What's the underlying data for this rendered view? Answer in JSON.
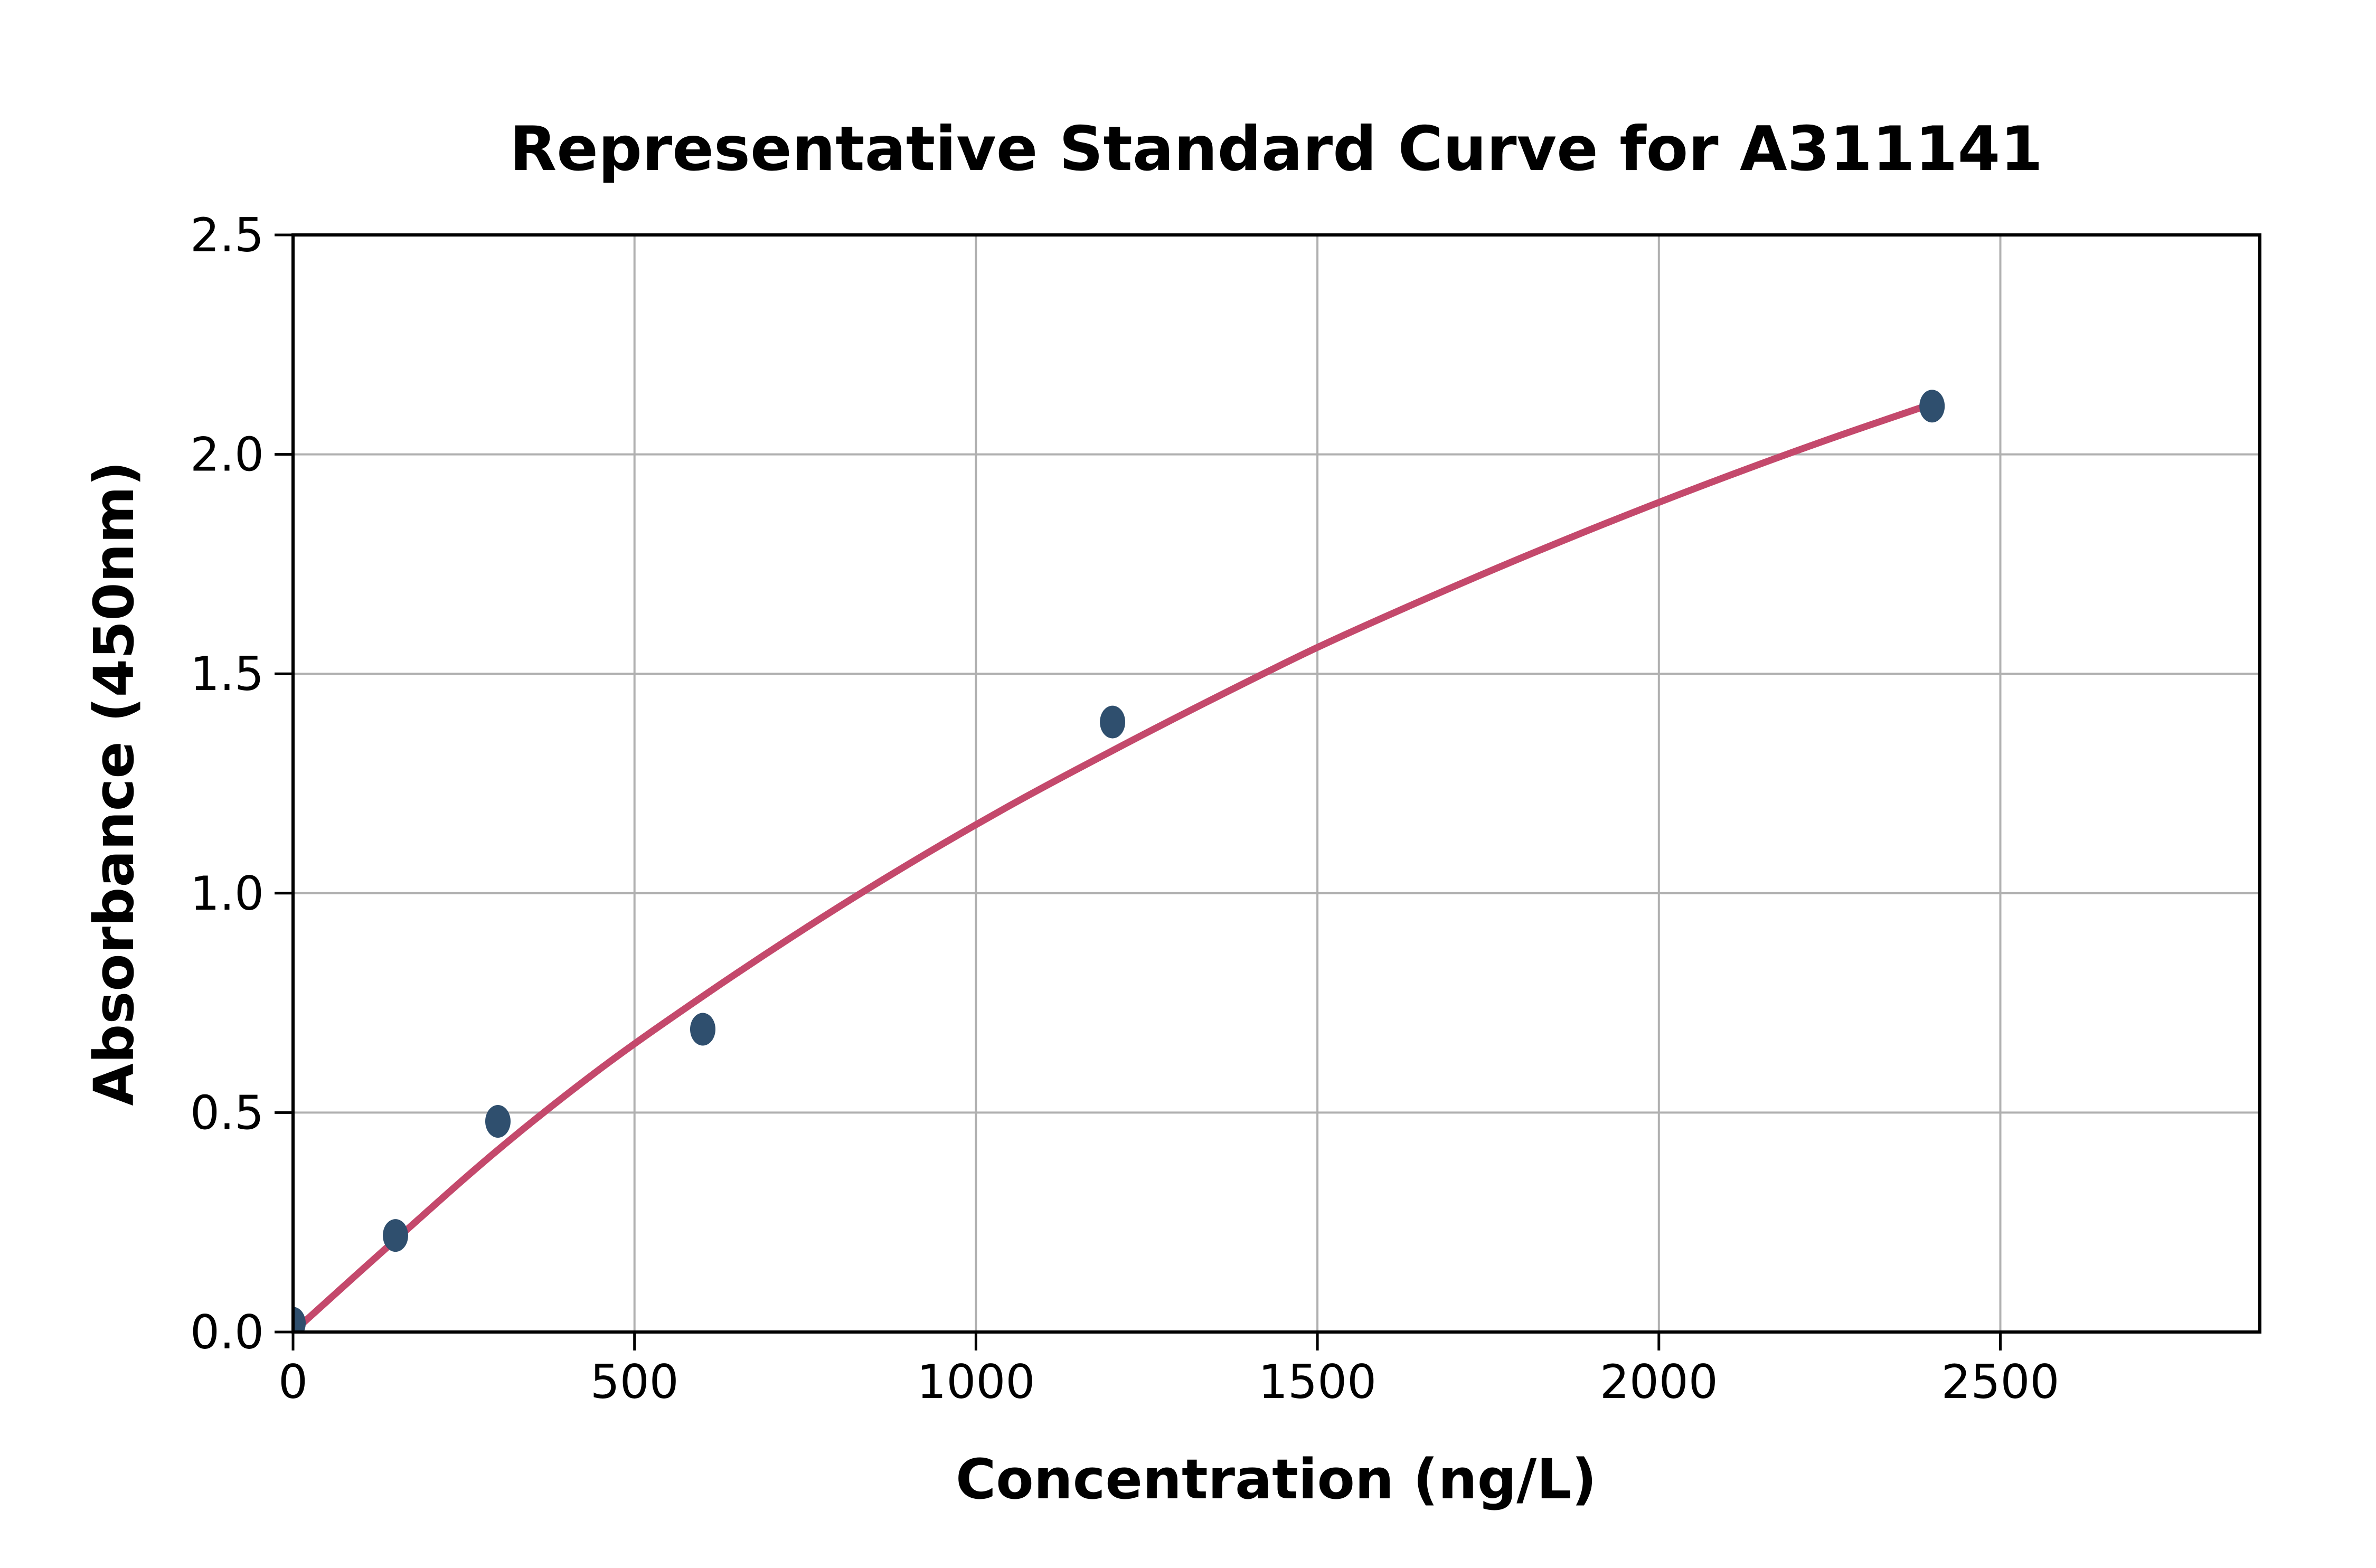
{
  "chart_data": {
    "type": "scatter",
    "title": "Representative Standard Curve for A311141",
    "xlabel": "Concentration (ng/L)",
    "ylabel": "Absorbance (450nm)",
    "xlim": [
      0,
      2880
    ],
    "ylim": [
      0,
      2.5
    ],
    "grid": true,
    "legend": false,
    "x_ticks": [
      0,
      500,
      1000,
      1500,
      2000,
      2500
    ],
    "x_tick_labels": [
      "0",
      "500",
      "1000",
      "1500",
      "2000",
      "2500"
    ],
    "y_ticks": [
      0,
      0.5,
      1.0,
      1.5,
      2.0,
      2.5
    ],
    "y_tick_labels": [
      "0.0",
      "0.5",
      "1.0",
      "1.5",
      "2.0",
      "2.5"
    ],
    "series": [
      {
        "name": "standard-points",
        "type": "scatter",
        "color": "#2F4F6E",
        "points": [
          [
            0,
            0.02
          ],
          [
            150,
            0.22
          ],
          [
            300,
            0.48
          ],
          [
            600,
            0.69
          ],
          [
            1200,
            1.39
          ],
          [
            2400,
            2.11
          ]
        ]
      },
      {
        "name": "fitted-standard-curve",
        "type": "line",
        "color": "#C4496C",
        "points": [
          [
            0,
            0.0
          ],
          [
            150,
            0.21
          ],
          [
            300,
            0.415
          ],
          [
            450,
            0.6
          ],
          [
            600,
            0.765
          ],
          [
            750,
            0.92
          ],
          [
            900,
            1.065
          ],
          [
            1050,
            1.2
          ],
          [
            1200,
            1.325
          ],
          [
            1350,
            1.445
          ],
          [
            1500,
            1.56
          ],
          [
            1650,
            1.665
          ],
          [
            1800,
            1.765
          ],
          [
            1950,
            1.86
          ],
          [
            2100,
            1.95
          ],
          [
            2250,
            2.035
          ],
          [
            2400,
            2.115
          ]
        ]
      }
    ],
    "colors": {
      "curve": "#C4496C",
      "marker": "#2F4F6E",
      "grid": "#B0B0B0",
      "spine": "#000000",
      "background": "#FFFFFF"
    }
  }
}
